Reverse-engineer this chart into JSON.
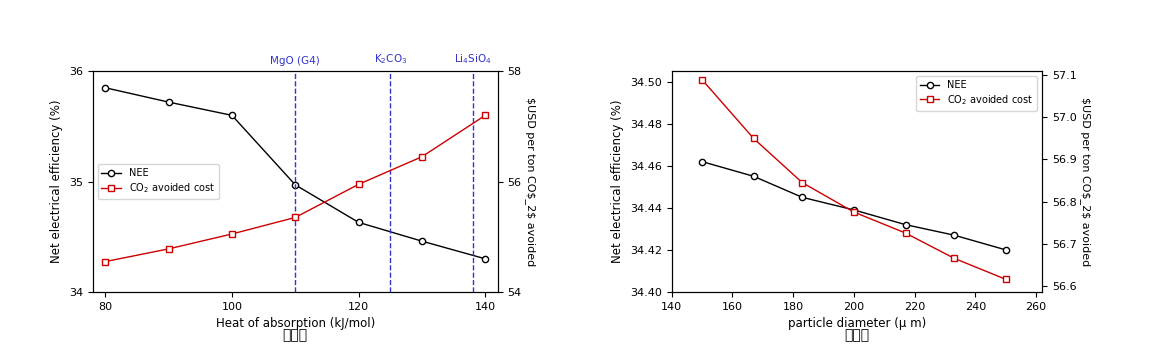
{
  "chart_a": {
    "nee_x": [
      80,
      90,
      100,
      110,
      120,
      130,
      140
    ],
    "nee_y": [
      35.85,
      35.72,
      35.6,
      34.97,
      34.63,
      34.46,
      34.3
    ],
    "cost_x": [
      80,
      90,
      100,
      110,
      120,
      130,
      140
    ],
    "cost_y": [
      54.55,
      54.78,
      55.05,
      55.35,
      55.95,
      56.45,
      57.2
    ],
    "xlim": [
      78,
      142
    ],
    "ylim_left": [
      34.0,
      36.0
    ],
    "ylim_right": [
      54.0,
      58.0
    ],
    "yticks_left": [
      34,
      35,
      36
    ],
    "yticks_right": [
      54,
      56,
      58
    ],
    "xticks": [
      80,
      100,
      120,
      140
    ],
    "xlabel": "Heat of absorption (kJ/mol)",
    "ylabel_left": "Net electrical efficiency (%)",
    "ylabel_right": "$USD per ton CO$_2$ avoided",
    "vlines": [
      110,
      125,
      138
    ],
    "vline_labels": [
      "MgO (G4)",
      "K$_2$CO$_3$",
      "Li$_4$SiO$_4$"
    ],
    "caption": "（가）"
  },
  "chart_b": {
    "nee_x": [
      150,
      167,
      183,
      200,
      217,
      233,
      250
    ],
    "nee_y": [
      34.462,
      34.455,
      34.445,
      34.439,
      34.432,
      34.427,
      34.42
    ],
    "cost_x": [
      150,
      167,
      183,
      200,
      217,
      233,
      250
    ],
    "cost_y": [
      57.09,
      56.95,
      56.845,
      56.775,
      56.725,
      56.665,
      56.615
    ],
    "xlim": [
      140,
      262
    ],
    "ylim_left": [
      34.4,
      34.505
    ],
    "ylim_right": [
      56.585,
      57.11
    ],
    "yticks_left": [
      34.4,
      34.42,
      34.44,
      34.46,
      34.48,
      34.5
    ],
    "yticks_right": [
      56.6,
      56.7,
      56.8,
      56.9,
      57.0,
      57.1
    ],
    "xticks": [
      140,
      160,
      180,
      200,
      220,
      240,
      260
    ],
    "xlabel": "particle diameter (μ m)",
    "ylabel_left": "Net electrical efficiency (%)",
    "ylabel_right": "$USD per ton CO$_2$ avoided",
    "caption": "（나）"
  },
  "nee_color": "#000000",
  "cost_color": "#cc0000",
  "vline_color": "#3333cc",
  "legend_nee": "NEE",
  "legend_cost": "CO$_2$ avoided cost",
  "marker_nee": "o",
  "marker_cost": "s"
}
